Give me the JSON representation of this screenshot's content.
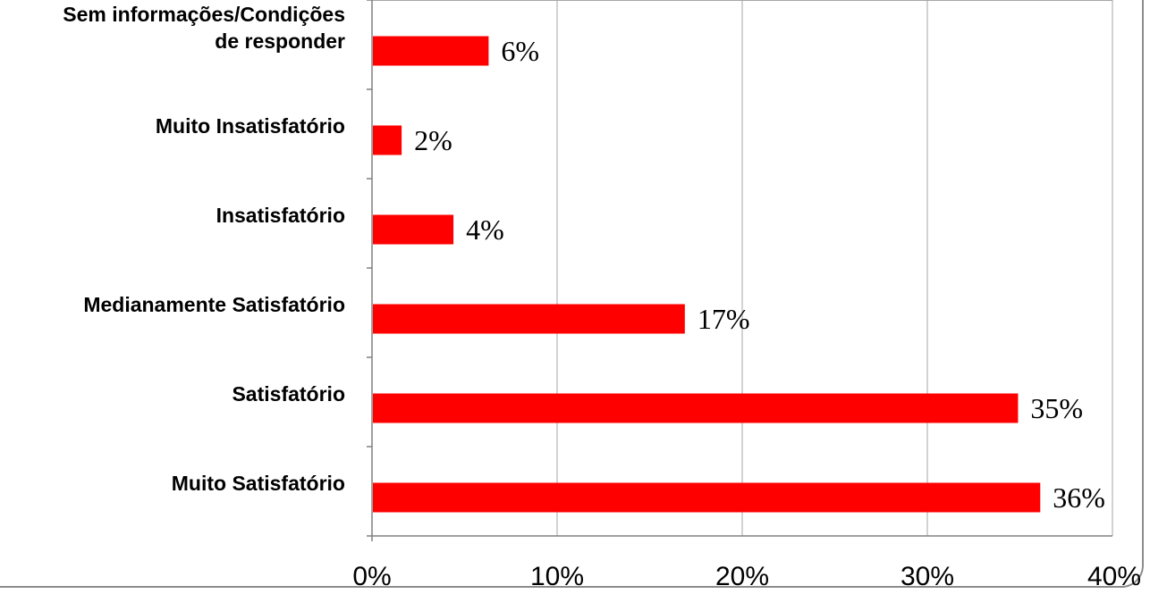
{
  "chart_data": {
    "type": "bar",
    "orientation": "horizontal",
    "title": "",
    "xlabel": "",
    "ylabel": "",
    "categories": [
      "Sem informações/Condições de responder",
      "Muito Insatisfatório",
      "Insatisfatório",
      "Medianamente Satisfatório",
      "Satisfatório",
      "Muito Satisfatório"
    ],
    "category_lines": [
      [
        "Sem informações/Condições",
        "de responder"
      ],
      [
        "Muito Insatisfatório"
      ],
      [
        "Insatisfatório"
      ],
      [
        "Medianamente Satisfatório"
      ],
      [
        "Satisfatório"
      ],
      [
        "Muito Satisfatório"
      ]
    ],
    "values": [
      6.3,
      1.6,
      4.4,
      16.9,
      34.9,
      36.1
    ],
    "data_labels": [
      "6%",
      "2%",
      "4%",
      "17%",
      "35%",
      "36%"
    ],
    "xlim": [
      0,
      40
    ],
    "x_ticks": [
      0,
      10,
      20,
      30,
      40
    ],
    "x_tick_labels": [
      "0%",
      "10%",
      "20%",
      "30%",
      "40%"
    ],
    "grid": "vertical",
    "legend": "none",
    "colors": {
      "bar": "#ff0000",
      "grid": "#a6a6a6",
      "axis": "#808080",
      "frame": "#8c8c8c"
    }
  }
}
